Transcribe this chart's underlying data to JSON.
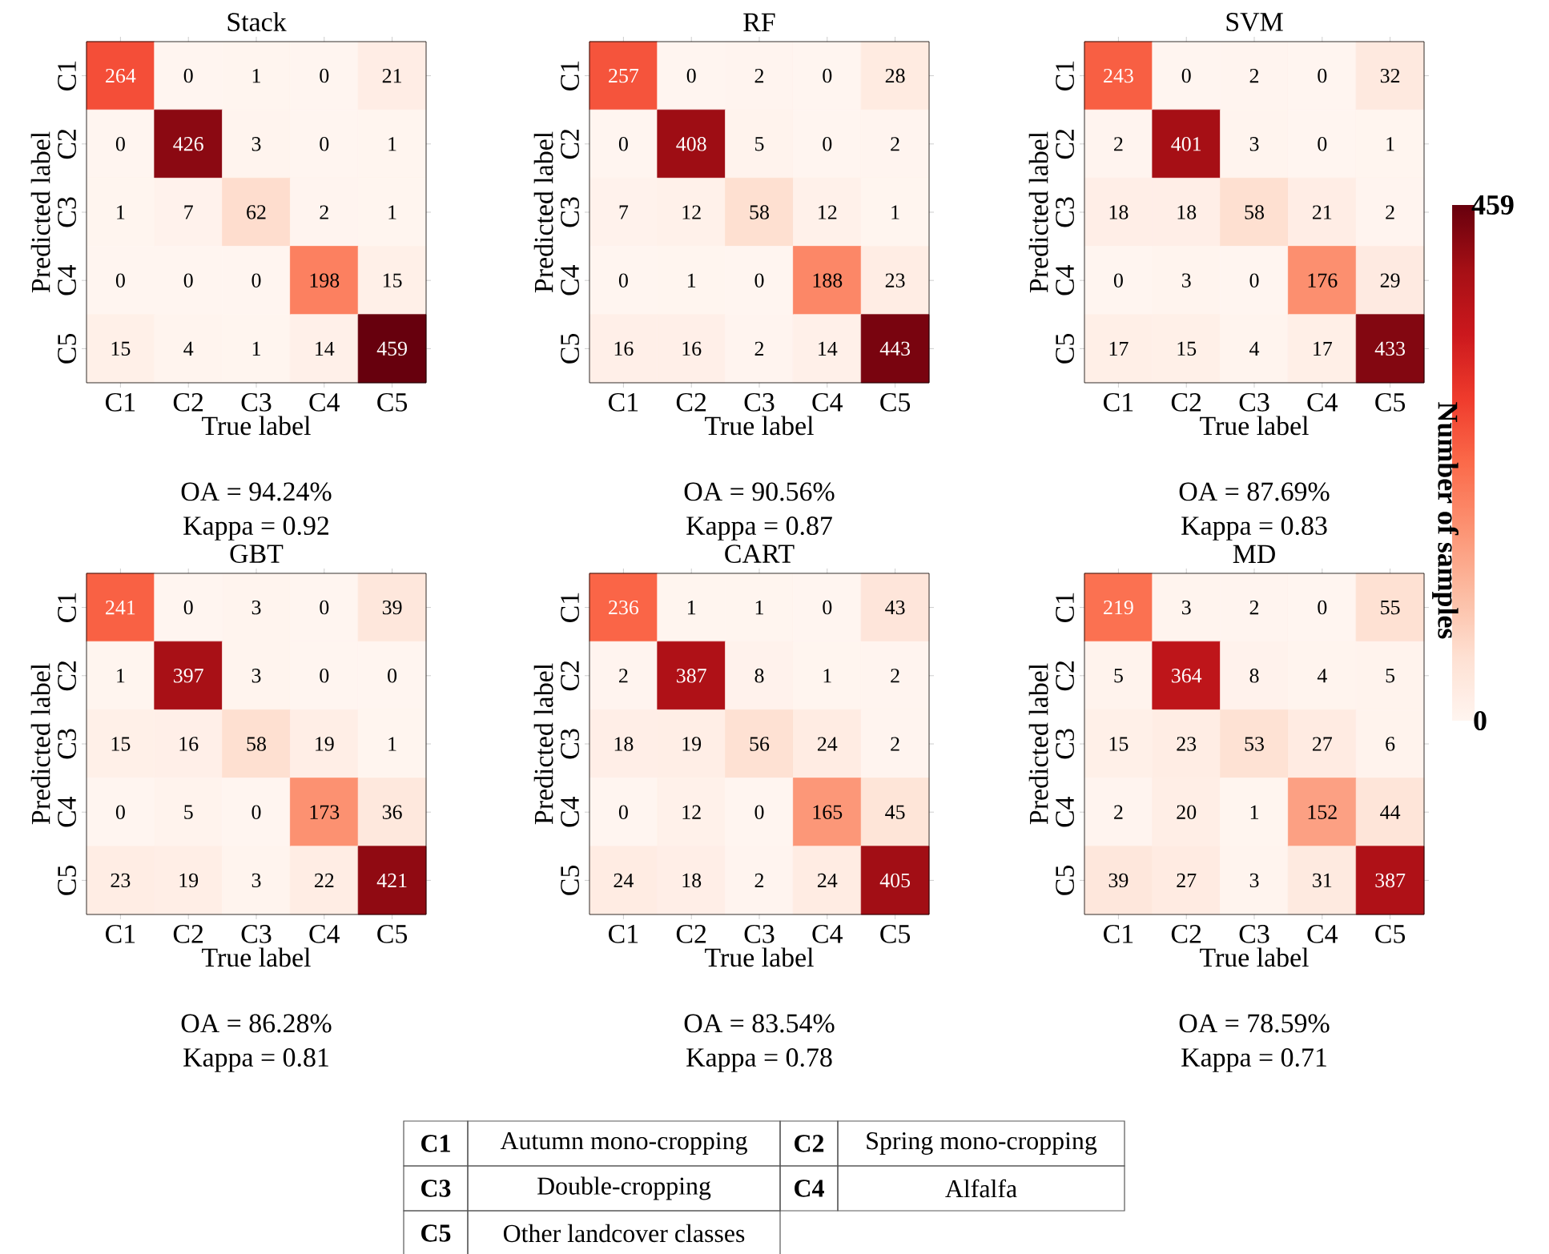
{
  "chart_data": [
    {
      "type": "heatmap",
      "title": "Stack",
      "xlabel": "True label",
      "ylabel": "Predicted label",
      "categories": [
        "C1",
        "C2",
        "C3",
        "C4",
        "C5"
      ],
      "y_categories": [
        "C1",
        "C2",
        "C3",
        "C4",
        "C5"
      ],
      "cells": [
        [
          264,
          0,
          1,
          0,
          21
        ],
        [
          0,
          426,
          3,
          0,
          1
        ],
        [
          1,
          7,
          62,
          2,
          1
        ],
        [
          0,
          0,
          0,
          198,
          15
        ],
        [
          15,
          4,
          1,
          14,
          459
        ]
      ],
      "data_labels": true,
      "annotations": [
        "OA = 94.24%",
        "Kappa = 0.92"
      ]
    },
    {
      "type": "heatmap",
      "title": "RF",
      "xlabel": "True label",
      "ylabel": "Predicted label",
      "categories": [
        "C1",
        "C2",
        "C3",
        "C4",
        "C5"
      ],
      "y_categories": [
        "C1",
        "C2",
        "C3",
        "C4",
        "C5"
      ],
      "cells": [
        [
          257,
          0,
          2,
          0,
          28
        ],
        [
          0,
          408,
          5,
          0,
          2
        ],
        [
          7,
          12,
          58,
          12,
          1
        ],
        [
          0,
          1,
          0,
          188,
          23
        ],
        [
          16,
          16,
          2,
          14,
          443
        ]
      ],
      "data_labels": true,
      "annotations": [
        "OA = 90.56%",
        "Kappa = 0.87"
      ]
    },
    {
      "type": "heatmap",
      "title": "SVM",
      "xlabel": "True label",
      "ylabel": "Predicted label",
      "categories": [
        "C1",
        "C2",
        "C3",
        "C4",
        "C5"
      ],
      "y_categories": [
        "C1",
        "C2",
        "C3",
        "C4",
        "C5"
      ],
      "cells": [
        [
          243,
          0,
          2,
          0,
          32
        ],
        [
          2,
          401,
          3,
          0,
          1
        ],
        [
          18,
          18,
          58,
          21,
          2
        ],
        [
          0,
          3,
          0,
          176,
          29
        ],
        [
          17,
          15,
          4,
          17,
          433
        ]
      ],
      "clim": [
        0,
        459
      ],
      "cticks": [
        0,
        459
      ],
      "clabel": "Number of samples",
      "data_labels": true,
      "annotations": [
        "OA = 87.69%",
        "Kappa = 0.83"
      ]
    },
    {
      "type": "heatmap",
      "title": "GBT",
      "xlabel": "True label",
      "ylabel": "Predicted label",
      "categories": [
        "C1",
        "C2",
        "C3",
        "C4",
        "C5"
      ],
      "y_categories": [
        "C1",
        "C2",
        "C3",
        "C4",
        "C5"
      ],
      "cells": [
        [
          241,
          0,
          3,
          0,
          39
        ],
        [
          1,
          397,
          3,
          0,
          0
        ],
        [
          15,
          16,
          58,
          19,
          1
        ],
        [
          0,
          5,
          0,
          173,
          36
        ],
        [
          23,
          19,
          3,
          22,
          421
        ]
      ],
      "data_labels": true,
      "annotations": [
        "OA = 86.28%",
        "Kappa = 0.81"
      ]
    },
    {
      "type": "heatmap",
      "title": "CART",
      "xlabel": "True label",
      "ylabel": "Predicted label",
      "categories": [
        "C1",
        "C2",
        "C3",
        "C4",
        "C5"
      ],
      "y_categories": [
        "C1",
        "C2",
        "C3",
        "C4",
        "C5"
      ],
      "cells": [
        [
          236,
          1,
          1,
          0,
          43
        ],
        [
          2,
          387,
          8,
          1,
          2
        ],
        [
          18,
          19,
          56,
          24,
          2
        ],
        [
          0,
          12,
          0,
          165,
          45
        ],
        [
          24,
          18,
          2,
          24,
          405
        ]
      ],
      "data_labels": true,
      "annotations": [
        "OA = 83.54%",
        "Kappa = 0.78"
      ]
    },
    {
      "type": "heatmap",
      "title": "MD",
      "xlabel": "True label",
      "ylabel": "Predicted label",
      "categories": [
        "C1",
        "C2",
        "C3",
        "C4",
        "C5"
      ],
      "y_categories": [
        "C1",
        "C2",
        "C3",
        "C4",
        "C5"
      ],
      "cells": [
        [
          219,
          3,
          2,
          0,
          55
        ],
        [
          5,
          364,
          8,
          4,
          5
        ],
        [
          15,
          23,
          53,
          27,
          6
        ],
        [
          2,
          20,
          1,
          152,
          44
        ],
        [
          39,
          27,
          3,
          31,
          387
        ]
      ],
      "data_labels": true,
      "annotations": [
        "OA = 78.59%",
        "Kappa = 0.71"
      ]
    },
    {
      "type": "other",
      "annotations": [
        "C1",
        "Autumn mono-cropping",
        "C2",
        "Spring mono-cropping",
        "C3",
        "Double-cropping",
        "C4",
        "Alfalfa",
        "C5",
        "Other landcover classes"
      ]
    }
  ]
}
